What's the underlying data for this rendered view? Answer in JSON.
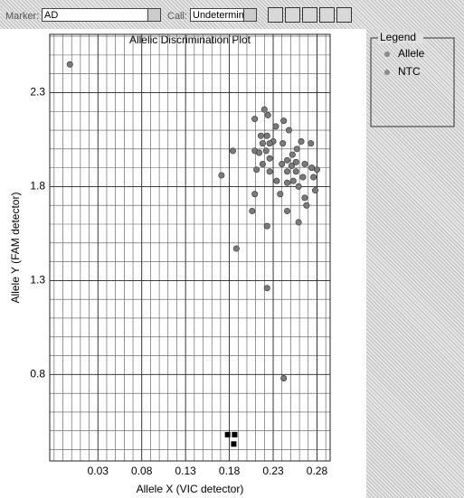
{
  "toolbar": {
    "marker_label": "Marker:",
    "marker_value": "AD",
    "call_label": "Call:",
    "call_value": "Undetermin"
  },
  "chart_data": {
    "type": "scatter",
    "title": "Allelic Discrimination Plot",
    "x_label": "Allele X (VIC detector)",
    "y_label": "Allele Y (FAM detector)",
    "legend_title": "Legend",
    "xlim": [
      -0.025,
      0.295
    ],
    "ylim": [
      0.34,
      2.61
    ],
    "xticks": [
      0.03,
      0.08,
      0.13,
      0.18,
      0.23,
      0.28
    ],
    "yticks": [
      0.8,
      1.3,
      1.8,
      2.3
    ],
    "x_minor_ticks": [
      -0.02,
      -0.01,
      0,
      0.01,
      0.02,
      0.04,
      0.05,
      0.06,
      0.07,
      0.09,
      0.1,
      0.11,
      0.12,
      0.14,
      0.15,
      0.16,
      0.17,
      0.19,
      0.2,
      0.21,
      0.22,
      0.24,
      0.25,
      0.26,
      0.27,
      0.29
    ],
    "y_minor_ticks": [
      0.4,
      0.5,
      0.6,
      0.7,
      0.9,
      1,
      1.1,
      1.2,
      1.4,
      1.5,
      1.6,
      1.7,
      1.9,
      2,
      2.1,
      2.2,
      2.4,
      2.5,
      2.6
    ],
    "grid": true,
    "series": [
      {
        "name": "Allele",
        "color": "#7a7a7a",
        "marker": "circle",
        "x": [
          -0.002,
          0.171,
          0.184,
          0.209,
          0.209,
          0.22,
          0.224,
          0.216,
          0.218,
          0.222,
          0.226,
          0.233,
          0.242,
          0.23,
          0.226,
          0.223,
          0.214,
          0.211,
          0.218,
          0.226,
          0.24,
          0.246,
          0.252,
          0.257,
          0.262,
          0.273,
          0.246,
          0.251,
          0.256,
          0.241,
          0.248,
          0.256,
          0.266,
          0.274,
          0.28,
          0.276,
          0.264,
          0.253,
          0.246,
          0.234,
          0.238,
          0.259,
          0.266,
          0.268,
          0.278,
          0.209,
          0.206,
          0.223,
          0.246,
          0.259,
          0.188,
          0.223,
          0.242
        ],
        "y": [
          2.45,
          1.86,
          1.99,
          1.99,
          2.16,
          2.21,
          2.18,
          2.07,
          2.03,
          1.99,
          1.95,
          2.12,
          2.15,
          2.04,
          2.03,
          2.07,
          1.98,
          1.89,
          1.92,
          1.88,
          1.92,
          1.94,
          1.97,
          2.0,
          2.04,
          2.03,
          1.88,
          1.91,
          1.93,
          2.03,
          2.1,
          1.88,
          1.92,
          1.9,
          1.89,
          1.85,
          1.85,
          1.83,
          1.82,
          1.83,
          1.76,
          1.8,
          1.74,
          1.7,
          1.78,
          1.76,
          1.67,
          1.59,
          1.67,
          1.61,
          1.47,
          1.26,
          0.78
        ]
      },
      {
        "name": "NTC",
        "color": "#000000",
        "marker": "square",
        "x": [
          0.178,
          0.186,
          0.185
        ],
        "y": [
          0.48,
          0.48,
          0.43
        ]
      }
    ]
  }
}
